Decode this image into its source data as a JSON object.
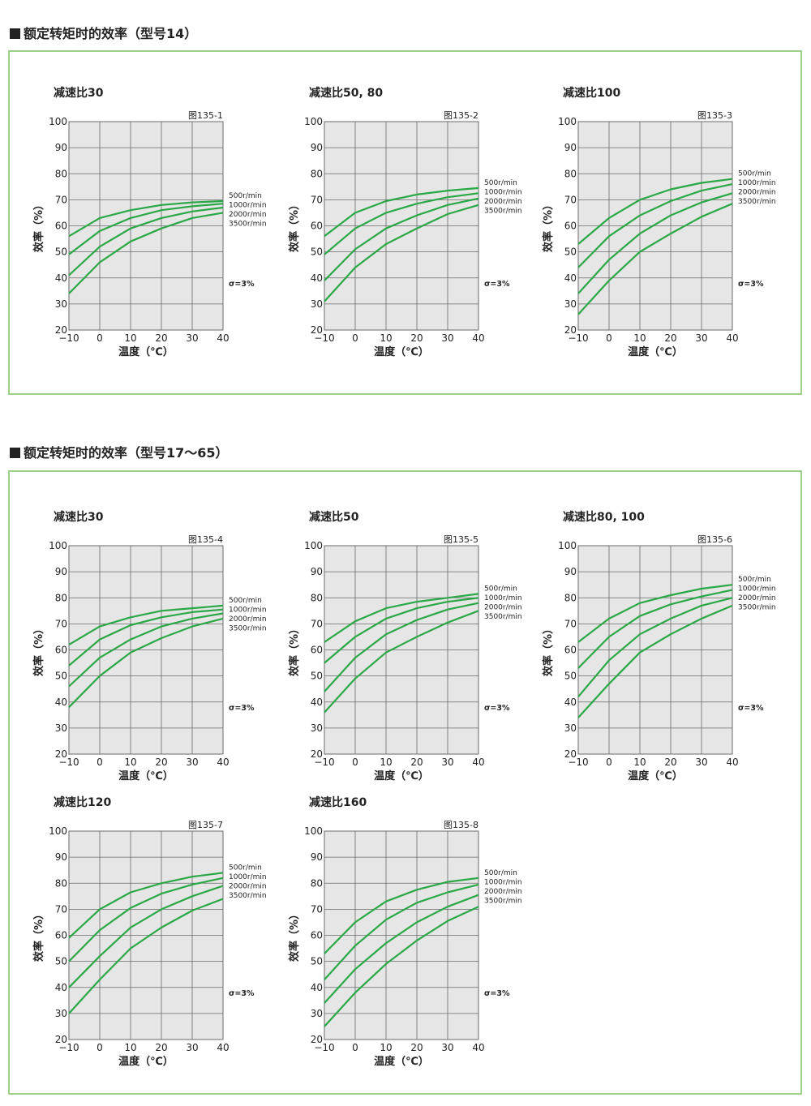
{
  "sections": [
    {
      "title": "额定转矩时的效率（型号14）"
    },
    {
      "title": "额定转矩时的效率（型号17～65）"
    }
  ],
  "colors": {
    "line": "#2aa846",
    "grid": "#6a6a6a",
    "plot_bg": "#e6e6e6",
    "panel_border": "#9fd08a"
  },
  "chart_data": [
    {
      "type": "line",
      "title": "减速比30",
      "figure": "图135-1",
      "xlabel": "温度（℃）",
      "ylabel": "效率（%）",
      "xlim": [
        -10,
        40
      ],
      "ylim": [
        20,
        100
      ],
      "xticks": [
        "−10",
        "0",
        "10",
        "20",
        "30",
        "40"
      ],
      "yticks": [
        "20",
        "30",
        "40",
        "50",
        "60",
        "70",
        "80",
        "90",
        "100"
      ],
      "note": "σ=3%",
      "x": [
        -10,
        0,
        10,
        20,
        30,
        40
      ],
      "series": [
        {
          "name": "500r/min",
          "values": [
            56,
            63,
            66,
            68,
            69,
            69.5
          ]
        },
        {
          "name": "1000r/min",
          "values": [
            49,
            58,
            63,
            66,
            67.5,
            68.5
          ]
        },
        {
          "name": "2000r/min",
          "values": [
            41,
            52,
            59,
            63,
            65.5,
            67
          ]
        },
        {
          "name": "3500r/min",
          "values": [
            34,
            46,
            54,
            59,
            63,
            65
          ]
        }
      ]
    },
    {
      "type": "line",
      "title": "减速比50, 80",
      "figure": "图135-2",
      "xlabel": "温度（℃）",
      "ylabel": "效率（%）",
      "xlim": [
        -10,
        40
      ],
      "ylim": [
        20,
        100
      ],
      "xticks": [
        "−10",
        "0",
        "10",
        "20",
        "30",
        "40"
      ],
      "yticks": [
        "20",
        "30",
        "40",
        "50",
        "60",
        "70",
        "80",
        "90",
        "100"
      ],
      "note": "σ=3%",
      "x": [
        -10,
        0,
        10,
        20,
        30,
        40
      ],
      "series": [
        {
          "name": "500r/min",
          "values": [
            56,
            65,
            69.5,
            72,
            73.5,
            74.5
          ]
        },
        {
          "name": "1000r/min",
          "values": [
            49,
            59,
            65,
            68.5,
            71,
            72.5
          ]
        },
        {
          "name": "2000r/min",
          "values": [
            39,
            51,
            59,
            64,
            68,
            70.5
          ]
        },
        {
          "name": "3500r/min",
          "values": [
            31,
            44,
            53,
            59,
            64.5,
            68
          ]
        }
      ]
    },
    {
      "type": "line",
      "title": "减速比100",
      "figure": "图135-3",
      "xlabel": "温度（℃）",
      "ylabel": "效率（%）",
      "xlim": [
        -10,
        40
      ],
      "ylim": [
        20,
        100
      ],
      "xticks": [
        "−10",
        "0",
        "10",
        "20",
        "30",
        "40"
      ],
      "yticks": [
        "20",
        "30",
        "40",
        "50",
        "60",
        "70",
        "80",
        "90",
        "100"
      ],
      "note": "σ=3%",
      "x": [
        -10,
        0,
        10,
        20,
        30,
        40
      ],
      "series": [
        {
          "name": "500r/min",
          "values": [
            53,
            63,
            70,
            74,
            76.5,
            78
          ]
        },
        {
          "name": "1000r/min",
          "values": [
            44,
            56,
            64,
            69.5,
            73.5,
            76
          ]
        },
        {
          "name": "2000r/min",
          "values": [
            34,
            47,
            57,
            64,
            69,
            72.5
          ]
        },
        {
          "name": "3500r/min",
          "values": [
            26,
            39,
            50,
            57,
            63.5,
            68.5
          ]
        }
      ]
    },
    {
      "type": "line",
      "title": "减速比30",
      "figure": "图135-4",
      "xlabel": "温度（℃）",
      "ylabel": "效率（%）",
      "xlim": [
        -10,
        40
      ],
      "ylim": [
        20,
        100
      ],
      "xticks": [
        "−10",
        "0",
        "10",
        "20",
        "30",
        "40"
      ],
      "yticks": [
        "20",
        "30",
        "40",
        "50",
        "60",
        "70",
        "80",
        "90",
        "100"
      ],
      "note": "σ=3%",
      "x": [
        -10,
        0,
        10,
        20,
        30,
        40
      ],
      "series": [
        {
          "name": "500r/min",
          "values": [
            62,
            69,
            72.5,
            75,
            76,
            77
          ]
        },
        {
          "name": "1000r/min",
          "values": [
            54,
            64,
            69.5,
            72.5,
            74.5,
            75.5
          ]
        },
        {
          "name": "2000r/min",
          "values": [
            46,
            57,
            64,
            69,
            72,
            74
          ]
        },
        {
          "name": "3500r/min",
          "values": [
            38,
            50,
            59,
            64.5,
            69,
            72
          ]
        }
      ]
    },
    {
      "type": "line",
      "title": "减速比50",
      "figure": "图135-5",
      "xlabel": "温度（℃）",
      "ylabel": "效率（%）",
      "xlim": [
        -10,
        40
      ],
      "ylim": [
        20,
        100
      ],
      "xticks": [
        "−10",
        "0",
        "10",
        "20",
        "30",
        "40"
      ],
      "yticks": [
        "20",
        "30",
        "40",
        "50",
        "60",
        "70",
        "80",
        "90",
        "100"
      ],
      "note": "σ=3%",
      "x": [
        -10,
        0,
        10,
        20,
        30,
        40
      ],
      "series": [
        {
          "name": "500r/min",
          "values": [
            63,
            71,
            76,
            78.5,
            80,
            81.5
          ]
        },
        {
          "name": "1000r/min",
          "values": [
            55,
            65,
            72,
            76,
            78.5,
            80
          ]
        },
        {
          "name": "2000r/min",
          "values": [
            44,
            57,
            66,
            71.5,
            75.5,
            78
          ]
        },
        {
          "name": "3500r/min",
          "values": [
            36,
            49,
            59,
            65,
            70.5,
            75
          ]
        }
      ]
    },
    {
      "type": "line",
      "title": "减速比80, 100",
      "figure": "图135-6",
      "xlabel": "温度（℃）",
      "ylabel": "效率（%）",
      "xlim": [
        -10,
        40
      ],
      "ylim": [
        20,
        100
      ],
      "xticks": [
        "−10",
        "0",
        "10",
        "20",
        "30",
        "40"
      ],
      "yticks": [
        "20",
        "30",
        "40",
        "50",
        "60",
        "70",
        "80",
        "90",
        "100"
      ],
      "note": "σ=3%",
      "x": [
        -10,
        0,
        10,
        20,
        30,
        40
      ],
      "series": [
        {
          "name": "500r/min",
          "values": [
            63,
            72,
            78,
            81,
            83.5,
            85
          ]
        },
        {
          "name": "1000r/min",
          "values": [
            53,
            65,
            73,
            77.5,
            80.5,
            83
          ]
        },
        {
          "name": "2000r/min",
          "values": [
            42,
            56,
            66,
            72,
            77,
            80
          ]
        },
        {
          "name": "3500r/min",
          "values": [
            34,
            47,
            59,
            66,
            72,
            77
          ]
        }
      ]
    },
    {
      "type": "line",
      "title": "减速比120",
      "figure": "图135-7",
      "xlabel": "温度（℃）",
      "ylabel": "效率（%）",
      "xlim": [
        -10,
        40
      ],
      "ylim": [
        20,
        100
      ],
      "xticks": [
        "−10",
        "0",
        "10",
        "20",
        "30",
        "40"
      ],
      "yticks": [
        "20",
        "30",
        "40",
        "50",
        "60",
        "70",
        "80",
        "90",
        "100"
      ],
      "note": "σ=3%",
      "x": [
        -10,
        0,
        10,
        20,
        30,
        40
      ],
      "series": [
        {
          "name": "500r/min",
          "values": [
            59,
            70,
            76.5,
            80,
            82.5,
            84
          ]
        },
        {
          "name": "1000r/min",
          "values": [
            50,
            62,
            70.5,
            76,
            79.5,
            82
          ]
        },
        {
          "name": "2000r/min",
          "values": [
            40,
            52,
            63,
            70,
            75,
            79
          ]
        },
        {
          "name": "3500r/min",
          "values": [
            30,
            43,
            55,
            63,
            69.5,
            74
          ]
        }
      ]
    },
    {
      "type": "line",
      "title": "减速比160",
      "figure": "图135-8",
      "xlabel": "温度（℃）",
      "ylabel": "效率（%）",
      "xlim": [
        -10,
        40
      ],
      "ylim": [
        20,
        100
      ],
      "xticks": [
        "−10",
        "0",
        "10",
        "20",
        "30",
        "40"
      ],
      "yticks": [
        "20",
        "30",
        "40",
        "50",
        "60",
        "70",
        "80",
        "90",
        "100"
      ],
      "note": "σ=3%",
      "x": [
        -10,
        0,
        10,
        20,
        30,
        40
      ],
      "series": [
        {
          "name": "500r/min",
          "values": [
            53,
            65,
            73,
            77.5,
            80.5,
            82
          ]
        },
        {
          "name": "1000r/min",
          "values": [
            43,
            56,
            66,
            72.5,
            76.5,
            79.5
          ]
        },
        {
          "name": "2000r/min",
          "values": [
            34,
            47,
            57,
            65,
            71,
            75.5
          ]
        },
        {
          "name": "3500r/min",
          "values": [
            25,
            38,
            49,
            58,
            65.5,
            71
          ]
        }
      ]
    }
  ]
}
